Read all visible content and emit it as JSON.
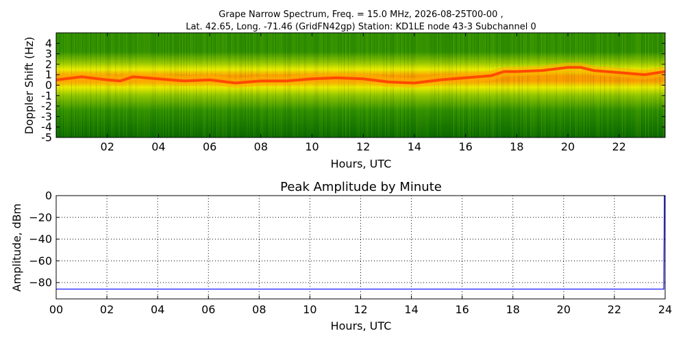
{
  "chart_data": [
    {
      "type": "heatmap",
      "title_lines": [
        "Grape Narrow Spectrum, Freq. = 15.0 MHz, 2026-08-25T00-00 ,",
        "Lat.  42.65, Long. -71.46 (GridFN42gp) Station: KD1LE node 43-3 Subchannel 0"
      ],
      "xlabel": "Hours, UTC",
      "ylabel": "Doppler Shift (Hz)",
      "xlim": [
        0,
        23.8
      ],
      "ylim": [
        -5,
        5
      ],
      "xticks": [
        "02",
        "04",
        "06",
        "08",
        "10",
        "12",
        "14",
        "16",
        "18",
        "20",
        "22"
      ],
      "xtick_values": [
        2,
        4,
        6,
        8,
        10,
        12,
        14,
        16,
        18,
        20,
        22
      ],
      "yticks": [
        "4",
        "3",
        "2",
        "1",
        "0",
        "-1",
        "-2",
        "-3",
        "-4",
        "-5"
      ],
      "ytick_values": [
        4,
        3,
        2,
        1,
        0,
        -1,
        -2,
        -3,
        -4,
        -5
      ],
      "colormap": [
        "#0a6a00",
        "#2f8f00",
        "#8fc400",
        "#f0ee00",
        "#ff9a00",
        "#ff3a00"
      ],
      "peak_doppler_trace": {
        "hours": [
          0,
          1,
          2,
          2.5,
          3,
          4,
          5,
          6,
          7,
          8,
          9,
          10,
          11,
          12,
          13,
          14,
          15,
          16,
          17,
          17.5,
          18,
          19,
          20,
          20.5,
          21,
          22,
          23,
          23.8
        ],
        "doppler_hz": [
          0.5,
          0.8,
          0.5,
          0.4,
          0.8,
          0.6,
          0.4,
          0.5,
          0.2,
          0.4,
          0.4,
          0.6,
          0.7,
          0.6,
          0.3,
          0.2,
          0.5,
          0.7,
          0.9,
          1.3,
          1.3,
          1.4,
          1.7,
          1.7,
          1.4,
          1.2,
          1.0,
          1.3
        ]
      }
    },
    {
      "type": "line",
      "title": "Peak Amplitude by Minute",
      "xlabel": "Hours, UTC",
      "ylabel": "Amplitude, dBm",
      "xlim": [
        0,
        24
      ],
      "ylim": [
        -95,
        0
      ],
      "grid": true,
      "xticks": [
        "00",
        "02",
        "04",
        "06",
        "08",
        "10",
        "12",
        "14",
        "16",
        "18",
        "20",
        "22",
        "24"
      ],
      "xtick_values": [
        0,
        2,
        4,
        6,
        8,
        10,
        12,
        14,
        16,
        18,
        20,
        22,
        24
      ],
      "yticks": [
        "0",
        "−20",
        "−40",
        "−60",
        "−80"
      ],
      "ytick_values": [
        0,
        -20,
        -40,
        -60,
        -80
      ],
      "line_color": "#0000ff",
      "series": [
        {
          "x": [
            0,
            2,
            4,
            6,
            8,
            10,
            12,
            14,
            16,
            18,
            20,
            22,
            23.95,
            23.97,
            24
          ],
          "values": [
            -86,
            -86,
            -86,
            -86,
            -86,
            -86,
            -86,
            -86,
            -86,
            -86,
            -86,
            -86,
            -86,
            0,
            0
          ]
        }
      ]
    }
  ]
}
